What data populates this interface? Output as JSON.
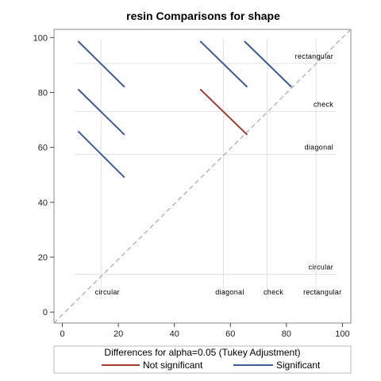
{
  "chart_data": {
    "type": "line",
    "title": "resin Comparisons for shape",
    "xlabel": "Differences for alpha=0.05 (Tukey Adjustment)",
    "ylabel": "",
    "xlim": [
      -3,
      103
    ],
    "ylim": [
      -4,
      103
    ],
    "xticks": [
      0,
      20,
      40,
      60,
      80,
      100
    ],
    "yticks": [
      0,
      20,
      40,
      60,
      80,
      100
    ],
    "grid": false,
    "reference_line": {
      "style": "dashed",
      "x": [
        -3,
        103
      ],
      "y": [
        -4,
        103
      ]
    },
    "level_positions": {
      "circular": 13.8,
      "diagonal": 57.5,
      "check": 73.1,
      "rectangular": 90.6
    },
    "x_annotations": [
      {
        "label": "circular",
        "x": 13.8
      },
      {
        "label": "diagonal",
        "x": 57.5
      },
      {
        "label": "check",
        "x": 73.1
      },
      {
        "label": "rectangular",
        "x": 90.6
      }
    ],
    "y_annotations": [
      {
        "label": "rectangular",
        "y": 90.6
      },
      {
        "label": "check",
        "y": 73.1
      },
      {
        "label": "diagonal",
        "y": 57.5
      },
      {
        "label": "circular",
        "y": 13.8
      }
    ],
    "series": [
      {
        "name": "Not significant",
        "color": "#A23A32",
        "segments": [
          {
            "x": [
              49.2,
              66.0
            ],
            "y": [
              81.2,
              64.6
            ]
          }
        ]
      },
      {
        "name": "Significant",
        "color": "#3F5A94",
        "segments": [
          {
            "x": [
              5.6,
              22.2
            ],
            "y": [
              98.7,
              82.0
            ]
          },
          {
            "x": [
              5.6,
              22.2
            ],
            "y": [
              81.2,
              64.6
            ]
          },
          {
            "x": [
              5.6,
              22.2
            ],
            "y": [
              65.9,
              49.0
            ]
          },
          {
            "x": [
              49.2,
              66.0
            ],
            "y": [
              98.7,
              82.0
            ]
          },
          {
            "x": [
              65.0,
              81.8
            ],
            "y": [
              98.7,
              82.0
            ]
          }
        ]
      }
    ],
    "legend": {
      "placement": "bottom",
      "entries": [
        {
          "label": "Not significant",
          "color": "#A23A32"
        },
        {
          "label": "Significant",
          "color": "#3F5A94"
        }
      ]
    }
  }
}
